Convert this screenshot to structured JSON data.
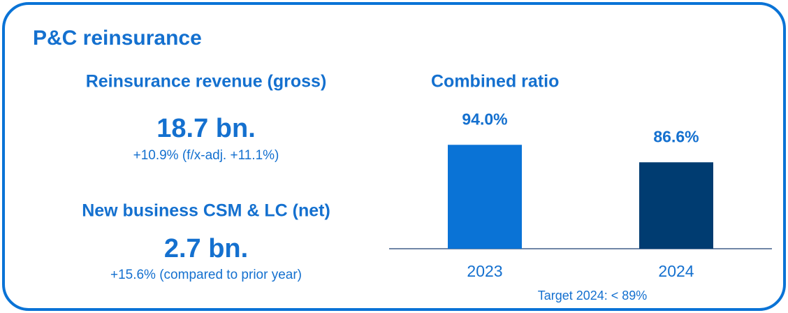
{
  "title": "P&C reinsurance",
  "kpis": [
    {
      "label": "Reinsurance revenue (gross)",
      "value": "18.7 bn.",
      "note": "+10.9% (f/x-adj. +11.1%)"
    },
    {
      "label": "New business CSM & LC (net)",
      "value": "2.7 bn.",
      "note": "+15.6% (compared to prior year)"
    }
  ],
  "chart_data": {
    "type": "bar",
    "title": "Combined ratio",
    "categories": [
      "2023",
      "2024"
    ],
    "values": [
      94.0,
      86.6
    ],
    "value_labels": [
      "94.0%",
      "86.6%"
    ],
    "colors": [
      "#0a73d6",
      "#003c71"
    ],
    "ylim": [
      50,
      100
    ],
    "annotation": "Target 2024: < 89%"
  }
}
